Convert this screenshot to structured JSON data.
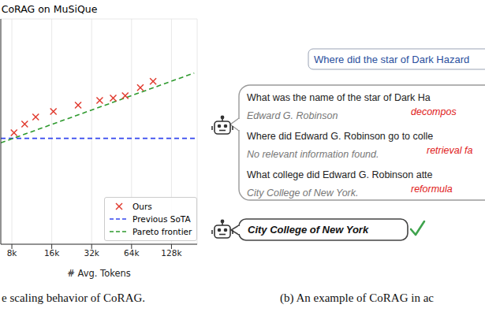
{
  "chart_data": {
    "type": "scatter",
    "title": "CoRAG on MuSiQue",
    "x_label": "# Avg. Tokens",
    "log": "x",
    "xlim": [
      6600,
      200000
    ],
    "xticks": [
      {
        "value": 8000,
        "label": "8k"
      },
      {
        "value": 16000,
        "label": "16k"
      },
      {
        "value": 32000,
        "label": "32k"
      },
      {
        "value": 64000,
        "label": "64k"
      },
      {
        "value": 128000,
        "label": "128k"
      }
    ],
    "ylim": [
      21.3,
      31.3
    ],
    "yticks": [
      22,
      24,
      26,
      28,
      30
    ],
    "tick_labels": "x",
    "grid": true,
    "legend": "lower right",
    "series": [
      {
        "name": "Ours",
        "type": "scatter",
        "marker": "x",
        "color": "#e0382c",
        "x": [
          8300,
          10000,
          12100,
          16450,
          25300,
          36800,
          46500,
          57300,
          74500,
          93000
        ],
        "values": [
          26.25,
          26.63,
          26.95,
          27.19,
          27.47,
          27.68,
          27.79,
          27.89,
          28.25,
          28.53
        ]
      },
      {
        "name": "Previous SoTA",
        "type": "line",
        "line_style": "dashed",
        "color": "#3346ee",
        "x": [
          6600,
          200000
        ],
        "values": [
          26,
          26
        ]
      },
      {
        "name": "Pareto frontier",
        "type": "line",
        "line_style": "dashed",
        "color": "#2e9a2e",
        "x": [
          6600,
          190000
        ],
        "values": [
          25.8,
          28.9
        ]
      }
    ]
  },
  "captions": [
    "e scaling behavior of CoRAG.",
    "(b) An example of CoRAG in ac"
  ],
  "diagram": {
    "question": "Where did the star of Dark Hazard",
    "steps": [
      {
        "query": "What was the name of the star of Dark Ha",
        "answer": "Edward G. Robinson",
        "tag": "decompos"
      },
      {
        "query": "Where did Edward G. Robinson go to colle",
        "answer": "No relevant information found.",
        "tag": "retrieval fa"
      },
      {
        "query": "What college did Edward G. Robinson atte",
        "answer": "City College of New York.",
        "tag": "reformula"
      }
    ],
    "final_answer": "City College of New York"
  }
}
